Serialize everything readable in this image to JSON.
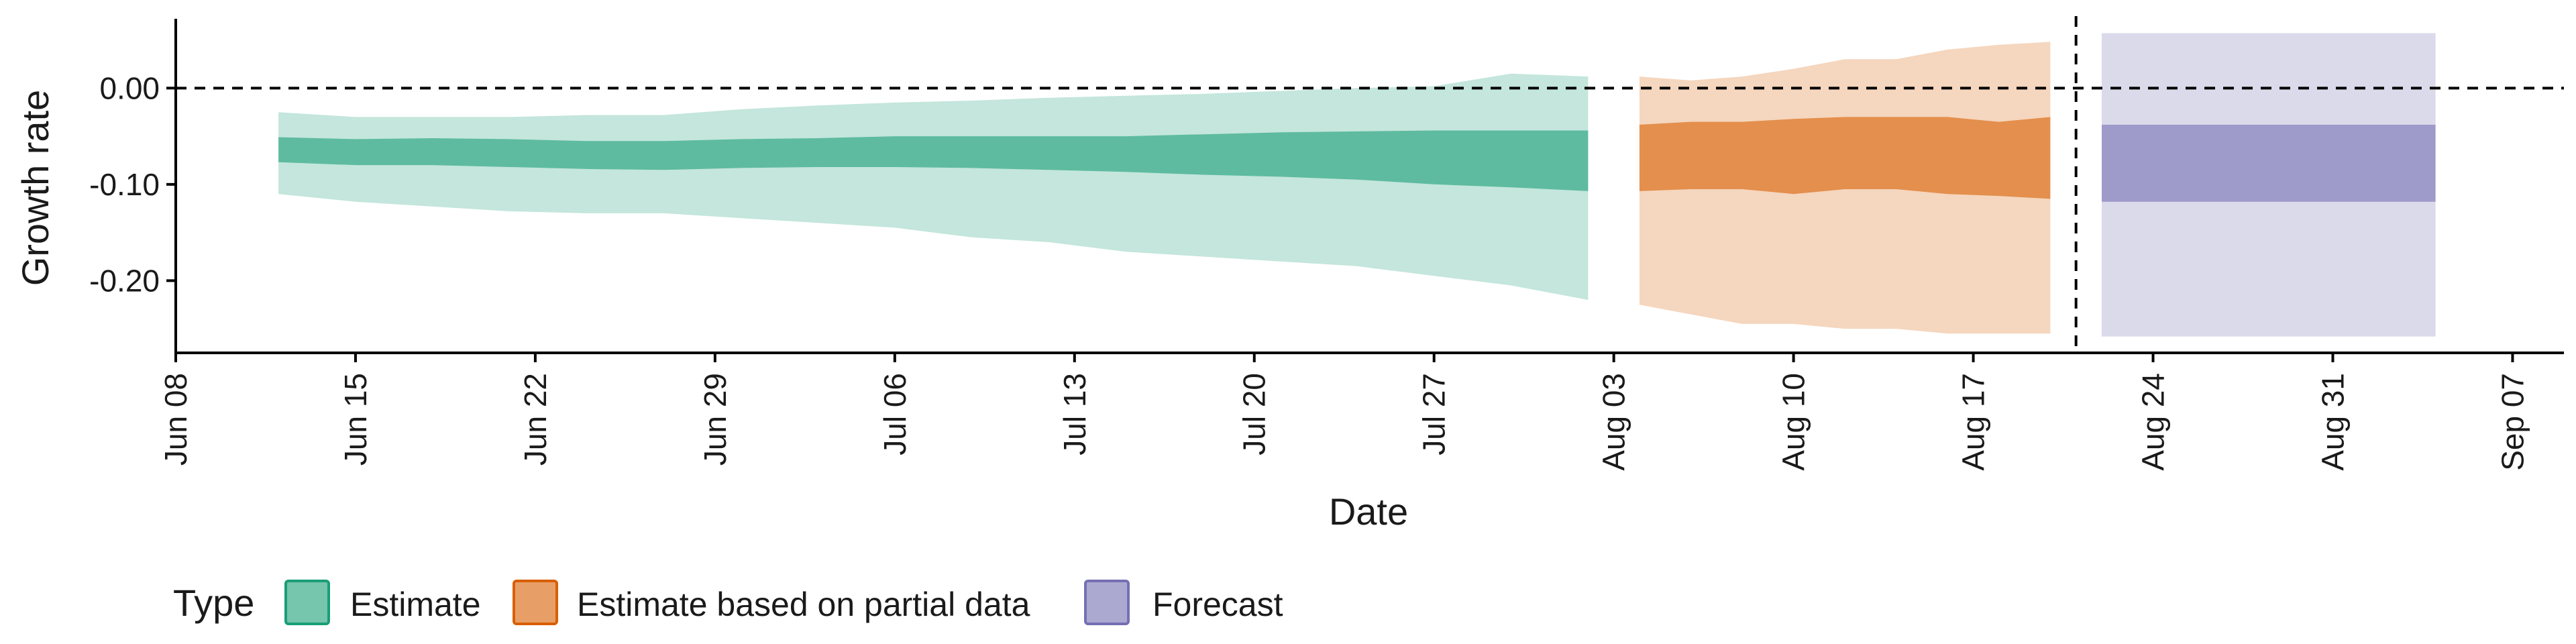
{
  "chart_data": {
    "type": "area",
    "title": "",
    "xlabel": "Date",
    "ylabel": "Growth rate",
    "x_ticks": [
      "Jun 08",
      "Jun 15",
      "Jun 22",
      "Jun 29",
      "Jul 06",
      "Jul 13",
      "Jul 20",
      "Jul 27",
      "Aug 03",
      "Aug 10",
      "Aug 17",
      "Aug 24",
      "Aug 31",
      "Sep 07"
    ],
    "y_ticks": [
      "0.00",
      "-0.10",
      "-0.20"
    ],
    "ylim": [
      -0.275,
      0.072
    ],
    "xlim": [
      "2020-06-08",
      "2020-09-09"
    ],
    "reference_lines": {
      "y": 0.0,
      "x": "2020-08-21",
      "style": "dashed"
    },
    "grid": false,
    "legend": {
      "title": "Type",
      "placement": "bottom",
      "entries": [
        "Estimate",
        "Estimate based on partial data",
        "Forecast"
      ]
    },
    "colors": {
      "Estimate": "#1b9e77",
      "Estimate based on partial data": "#d95f02",
      "Forecast": "#7570b3"
    },
    "series": [
      {
        "name": "Estimate",
        "x": [
          "2020-06-12",
          "2020-06-15",
          "2020-06-18",
          "2020-06-21",
          "2020-06-24",
          "2020-06-27",
          "2020-06-30",
          "2020-07-03",
          "2020-07-06",
          "2020-07-09",
          "2020-07-12",
          "2020-07-15",
          "2020-07-18",
          "2020-07-21",
          "2020-07-24",
          "2020-07-27",
          "2020-07-30",
          "2020-08-02"
        ],
        "lower_90": [
          -0.11,
          -0.118,
          -0.123,
          -0.128,
          -0.13,
          -0.13,
          -0.135,
          -0.14,
          -0.145,
          -0.155,
          -0.16,
          -0.17,
          -0.175,
          -0.18,
          -0.185,
          -0.195,
          -0.205,
          -0.22
        ],
        "lower_50": [
          -0.077,
          -0.08,
          -0.08,
          -0.082,
          -0.084,
          -0.085,
          -0.083,
          -0.082,
          -0.082,
          -0.083,
          -0.085,
          -0.087,
          -0.09,
          -0.092,
          -0.095,
          -0.1,
          -0.103,
          -0.107
        ],
        "upper_50": [
          -0.051,
          -0.053,
          -0.052,
          -0.053,
          -0.055,
          -0.055,
          -0.053,
          -0.052,
          -0.05,
          -0.05,
          -0.05,
          -0.05,
          -0.048,
          -0.046,
          -0.045,
          -0.044,
          -0.044,
          -0.044
        ],
        "upper_90": [
          -0.025,
          -0.03,
          -0.03,
          -0.03,
          -0.028,
          -0.028,
          -0.022,
          -0.018,
          -0.015,
          -0.013,
          -0.01,
          -0.008,
          -0.006,
          -0.003,
          0.0,
          0.002,
          0.015,
          0.012
        ]
      },
      {
        "name": "Estimate based on partial data",
        "x": [
          "2020-08-04",
          "2020-08-06",
          "2020-08-08",
          "2020-08-10",
          "2020-08-12",
          "2020-08-14",
          "2020-08-16",
          "2020-08-18",
          "2020-08-20"
        ],
        "lower_90": [
          -0.225,
          -0.235,
          -0.245,
          -0.245,
          -0.25,
          -0.25,
          -0.255,
          -0.255,
          -0.255
        ],
        "lower_50": [
          -0.107,
          -0.105,
          -0.105,
          -0.11,
          -0.105,
          -0.105,
          -0.11,
          -0.112,
          -0.115
        ],
        "upper_50": [
          -0.038,
          -0.035,
          -0.035,
          -0.032,
          -0.03,
          -0.03,
          -0.03,
          -0.035,
          -0.03
        ],
        "upper_90": [
          0.012,
          0.008,
          0.012,
          0.02,
          0.03,
          0.03,
          0.04,
          0.045,
          0.048
        ]
      },
      {
        "name": "Forecast",
        "x": [
          "2020-08-22",
          "2020-09-04"
        ],
        "lower_90": [
          -0.258,
          -0.258
        ],
        "lower_50": [
          -0.118,
          -0.118
        ],
        "upper_50": [
          -0.038,
          -0.038
        ],
        "upper_90": [
          0.057,
          0.057
        ]
      }
    ]
  }
}
